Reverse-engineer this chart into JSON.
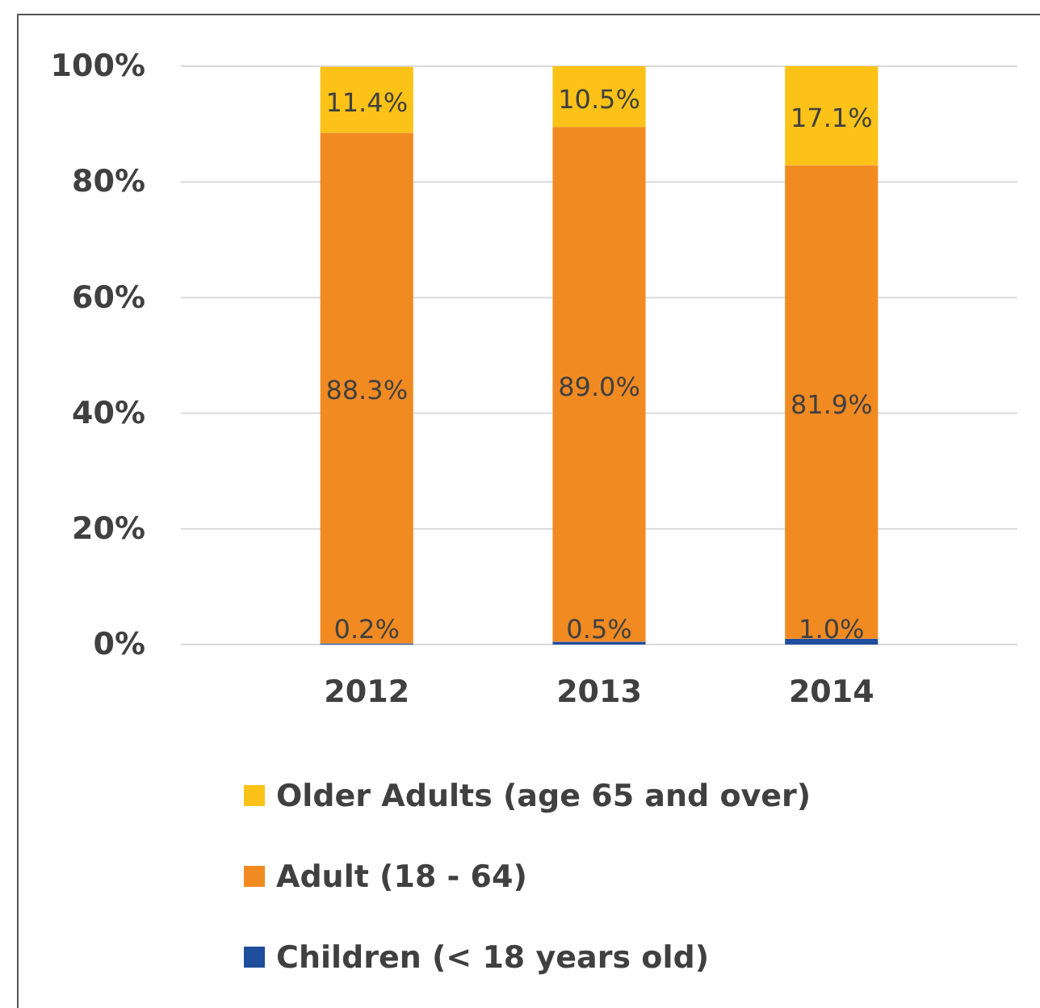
{
  "chart_data": {
    "type": "bar",
    "stacked": true,
    "categories": [
      "2012",
      "2013",
      "2014"
    ],
    "series": [
      {
        "name": "Children (< 18 years old)",
        "color": "#1f4e9c",
        "values": [
          0.2,
          0.5,
          1.0
        ],
        "value_labels": [
          "0.2%",
          "0.5%",
          "1.0%"
        ]
      },
      {
        "name": "Adult (18 - 64)",
        "color": "#f28a22",
        "values": [
          88.3,
          89.0,
          81.9
        ],
        "value_labels": [
          "88.3%",
          "89.0%",
          "81.9%"
        ]
      },
      {
        "name": "Older Adults (age 65 and over)",
        "color": "#fdc217",
        "values": [
          11.4,
          10.5,
          17.1
        ],
        "value_labels": [
          "11.4%",
          "10.5%",
          "17.1%"
        ]
      }
    ],
    "ylim": [
      0,
      100
    ],
    "yticks": [
      {
        "value": 0,
        "label": "0%"
      },
      {
        "value": 20,
        "label": "20%"
      },
      {
        "value": 40,
        "label": "40%"
      },
      {
        "value": 60,
        "label": "60%"
      },
      {
        "value": 80,
        "label": "80%"
      },
      {
        "value": 100,
        "label": "100%"
      }
    ],
    "grid": "y",
    "legend": "bottom"
  }
}
